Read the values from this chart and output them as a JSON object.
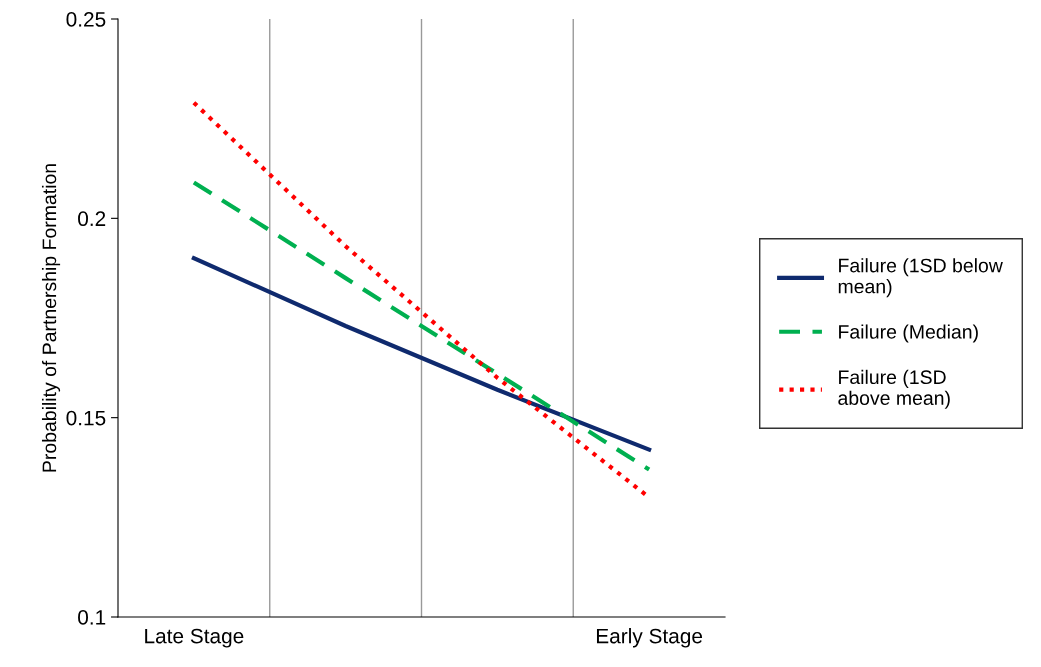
{
  "chart_data": {
    "type": "line",
    "ylabel": "Probability of Partnership Formation",
    "categories": [
      "Late Stage",
      null,
      null,
      "Early Stage"
    ],
    "series": [
      {
        "name": "Failure (1SD below\nmean)",
        "color": "#0f2a6e",
        "line_style": "solid",
        "values": [
          0.19,
          0.173,
          0.157,
          0.142
        ]
      },
      {
        "name": "Failure (Median)",
        "color": "#00b050",
        "line_style": "dashed",
        "values": [
          0.209,
          0.185,
          0.161,
          0.137
        ]
      },
      {
        "name": "Failure (1SD\nabove mean)",
        "color": "#ff0000",
        "line_style": "dotted",
        "values": [
          0.229,
          0.193,
          0.16,
          0.13
        ]
      }
    ],
    "ylim": [
      0.1,
      0.25
    ],
    "yticks": [
      0.1,
      0.15,
      0.2,
      0.25
    ],
    "grid": "x",
    "legend": "right",
    "marker": "none"
  }
}
